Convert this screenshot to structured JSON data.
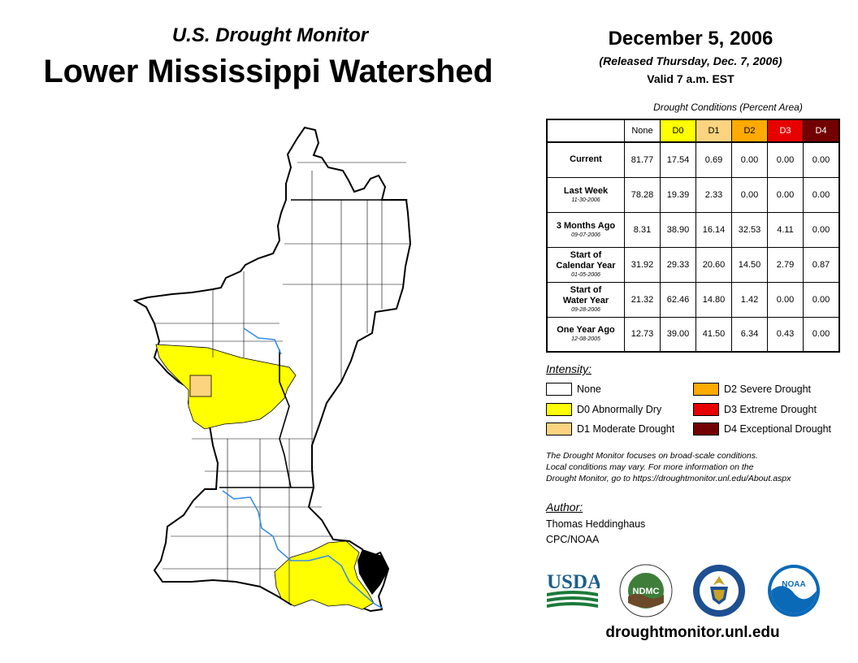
{
  "header": {
    "subtitle": "U.S. Drought Monitor",
    "title": "Lower Mississippi Watershed",
    "date": "December 5, 2006",
    "released": "(Released Thursday, Dec. 7, 2006)",
    "valid": "Valid 7 a.m. EST"
  },
  "table": {
    "caption": "Drought Conditions (Percent Area)",
    "columns": [
      {
        "label": "None",
        "color": "#ffffff"
      },
      {
        "label": "D0",
        "color": "#ffff00"
      },
      {
        "label": "D1",
        "color": "#fcd37f"
      },
      {
        "label": "D2",
        "color": "#ffaa00"
      },
      {
        "label": "D3",
        "color": "#e60000"
      },
      {
        "label": "D4",
        "color": "#730000"
      }
    ],
    "rows": [
      {
        "label": "Current",
        "sub": "",
        "values": [
          "81.77",
          "17.54",
          "0.69",
          "0.00",
          "0.00",
          "0.00"
        ]
      },
      {
        "label": "Last Week",
        "sub": "11-30-2006",
        "values": [
          "78.28",
          "19.39",
          "2.33",
          "0.00",
          "0.00",
          "0.00"
        ]
      },
      {
        "label": "3 Months Ago",
        "sub": "09-07-2006",
        "values": [
          "8.31",
          "38.90",
          "16.14",
          "32.53",
          "4.11",
          "0.00"
        ]
      },
      {
        "label": "Start of",
        "label2": "Calendar Year",
        "sub": "01-05-2006",
        "values": [
          "31.92",
          "29.33",
          "20.60",
          "14.50",
          "2.79",
          "0.87"
        ]
      },
      {
        "label": "Start of",
        "label2": "Water Year",
        "sub": "09-28-2006",
        "values": [
          "21.32",
          "62.46",
          "14.80",
          "1.42",
          "0.00",
          "0.00"
        ]
      },
      {
        "label": "One Year Ago",
        "sub": "12-08-2005",
        "values": [
          "12.73",
          "39.00",
          "41.50",
          "6.34",
          "0.43",
          "0.00"
        ]
      }
    ]
  },
  "legend": {
    "title": "Intensity:",
    "items": [
      {
        "label": "None",
        "color": "#ffffff"
      },
      {
        "label": "D0 Abnormally Dry",
        "color": "#ffff00"
      },
      {
        "label": "D1 Moderate Drought",
        "color": "#fcd37f"
      },
      {
        "label": "D2 Severe Drought",
        "color": "#ffaa00"
      },
      {
        "label": "D3 Extreme Drought",
        "color": "#e60000"
      },
      {
        "label": "D4 Exceptional Drought",
        "color": "#730000"
      }
    ]
  },
  "note": {
    "line1": "The Drought Monitor focuses on broad-scale conditions.",
    "line2": "Local conditions may vary. For more information on the",
    "line3": "Drought Monitor, go to https://droughtmonitor.unl.edu/About.aspx"
  },
  "author": {
    "label": "Author:",
    "name": "Thomas Heddinghaus",
    "org": "CPC/NOAA"
  },
  "logos": {
    "usda": "USDA",
    "ndmc": "NDMC",
    "noaa": "NOAA"
  },
  "url": "droughtmonitor.unl.edu",
  "colors": {
    "river": "#3a8ee6",
    "d0": "#ffff00",
    "d1": "#fcd37f"
  }
}
